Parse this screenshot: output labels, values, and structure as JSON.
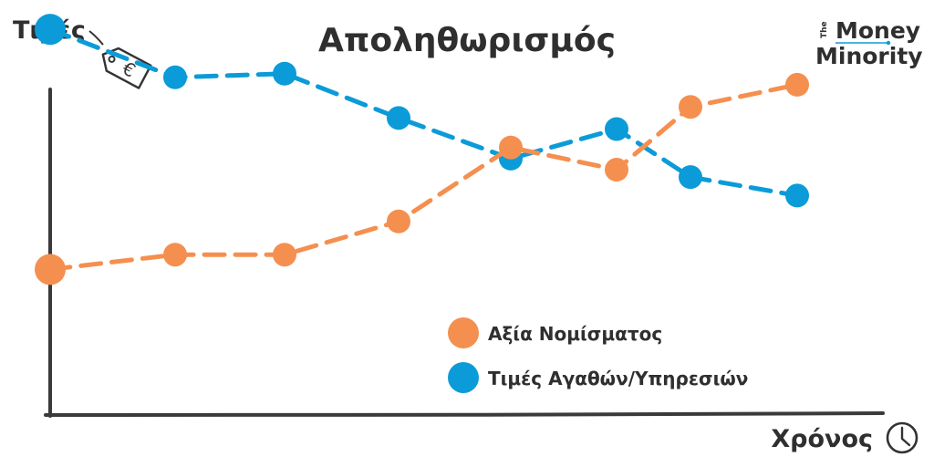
{
  "chart_data": {
    "type": "line",
    "title": "Αποληθωρισμός",
    "ylabel": "Τιμές",
    "xlabel": "Χρόνος",
    "grid": false,
    "legend_position": "bottom-right",
    "x": [
      0,
      1,
      2,
      3,
      4,
      5,
      6,
      7
    ],
    "ylim": [
      0,
      100
    ],
    "series": [
      {
        "name": "Αξία Νομίσματος",
        "color": "#f58f4f",
        "values": [
          32,
          36,
          36,
          45,
          65,
          59,
          76,
          82
        ]
      },
      {
        "name": "Τιμές Αγαθών/Υπηρεσιών",
        "color": "#0b9bd8",
        "values": [
          97,
          84,
          85,
          73,
          62,
          70,
          57,
          52
        ]
      }
    ]
  },
  "decor": {
    "price_tag_icon": "euro-price-tag-icon",
    "time_icon": "clock-icon",
    "currency_symbol": "€"
  },
  "logo": {
    "the": "The",
    "line1": "Money",
    "line2": "Minority",
    "accent": "#0b9bd8"
  }
}
